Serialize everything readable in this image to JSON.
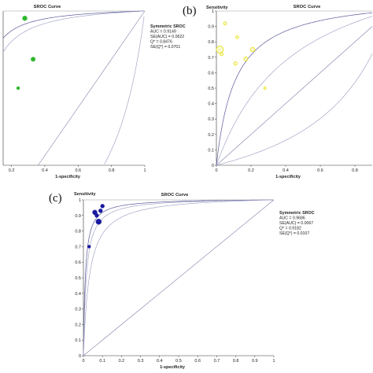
{
  "chart_data": [
    {
      "type": "scatter",
      "panel_label": "",
      "title": "SROC Curve",
      "xlabel": "1-specificity",
      "ylabel": "",
      "xlim": [
        0.15,
        1
      ],
      "ylim": [
        0.36,
        1
      ],
      "x_ticks": [
        "0.2",
        "0.4",
        "0.6",
        "0.8",
        "1"
      ],
      "y_ticks": [],
      "points": [
        {
          "x": 0.28,
          "y": 0.97,
          "size": 3.0,
          "color": "#2db82d"
        },
        {
          "x": 0.33,
          "y": 0.8,
          "size": 2.8,
          "color": "#2db82d"
        },
        {
          "x": 0.24,
          "y": 0.68,
          "size": 2.0,
          "color": "#2db82d"
        }
      ],
      "curves_q": [
        0.87,
        0.84,
        0.3
      ],
      "stats": {
        "heading": "Symmetric SROC",
        "lines": [
          "AUC = 0.9149",
          "SE(AUC) = 0.0622",
          "Q* = 0.8476",
          "SE(Q*) = 0.0701"
        ]
      }
    },
    {
      "type": "scatter",
      "panel_label": "(b)",
      "title": "SROC Curve",
      "ylabel": "Sensitivity",
      "xlabel": "1-specificity",
      "xlim": [
        0,
        0.9
      ],
      "ylim": [
        0,
        1
      ],
      "x_ticks": [
        "0",
        "0.2",
        "0.4",
        "0.6",
        "0.8"
      ],
      "y_ticks": [
        "0",
        "0.1",
        "0.2",
        "0.3",
        "0.4",
        "0.5",
        "0.6",
        "0.7",
        "0.8",
        "0.9",
        "1"
      ],
      "points": [
        {
          "x": 0.02,
          "y": 0.75,
          "size": 4.5,
          "color": "#e8e42a"
        },
        {
          "x": 0.03,
          "y": 0.72,
          "size": 2.0,
          "color": "#e8e42a"
        },
        {
          "x": 0.05,
          "y": 0.92,
          "size": 2.0,
          "color": "#e8e42a"
        },
        {
          "x": 0.12,
          "y": 0.83,
          "size": 2.0,
          "color": "#e8e42a"
        },
        {
          "x": 0.11,
          "y": 0.66,
          "size": 2.2,
          "color": "#e8e42a"
        },
        {
          "x": 0.17,
          "y": 0.69,
          "size": 2.5,
          "color": "#e8e42a"
        },
        {
          "x": 0.21,
          "y": 0.75,
          "size": 2.8,
          "color": "#e8e42a"
        },
        {
          "x": 0.28,
          "y": 0.5,
          "size": 1.5,
          "color": "#e8e42a"
        }
      ],
      "curves_q": [
        0.76,
        0.64,
        0.35
      ]
    },
    {
      "type": "scatter",
      "panel_label": "(c)",
      "title": "SROC Curve",
      "ylabel": "Sensitivity",
      "xlabel": "1-specificity",
      "xlim": [
        0,
        1
      ],
      "ylim": [
        0,
        1
      ],
      "x_ticks": [
        "0",
        "0.1",
        "0.2",
        "0.3",
        "0.4",
        "0.5",
        "0.6",
        "0.7",
        "0.8",
        "0.9",
        "1"
      ],
      "y_ticks": [
        "0",
        "0.1",
        "0.2",
        "0.3",
        "0.4",
        "0.5",
        "0.6",
        "0.7",
        "0.8",
        "0.9",
        "1"
      ],
      "points": [
        {
          "x": 0.03,
          "y": 0.7,
          "size": 2.0,
          "color": "#1a1aa0"
        },
        {
          "x": 0.06,
          "y": 0.92,
          "size": 3.0,
          "color": "#1a1aa0"
        },
        {
          "x": 0.07,
          "y": 0.9,
          "size": 2.5,
          "color": "#1a1aa0"
        },
        {
          "x": 0.08,
          "y": 0.86,
          "size": 3.5,
          "color": "#1a1aa0"
        },
        {
          "x": 0.09,
          "y": 0.93,
          "size": 2.5,
          "color": "#1a1aa0"
        },
        {
          "x": 0.1,
          "y": 0.96,
          "size": 2.5,
          "color": "#1a1aa0"
        }
      ],
      "curves_q": [
        0.91,
        0.89,
        0.85
      ],
      "stats": {
        "heading": "Symmetric SROC",
        "lines": [
          "AUC = 0.9686",
          "SE(AUC) = 0.0067",
          "Q* = 0.9182",
          "SE(Q*) = 0.0107"
        ]
      }
    }
  ]
}
